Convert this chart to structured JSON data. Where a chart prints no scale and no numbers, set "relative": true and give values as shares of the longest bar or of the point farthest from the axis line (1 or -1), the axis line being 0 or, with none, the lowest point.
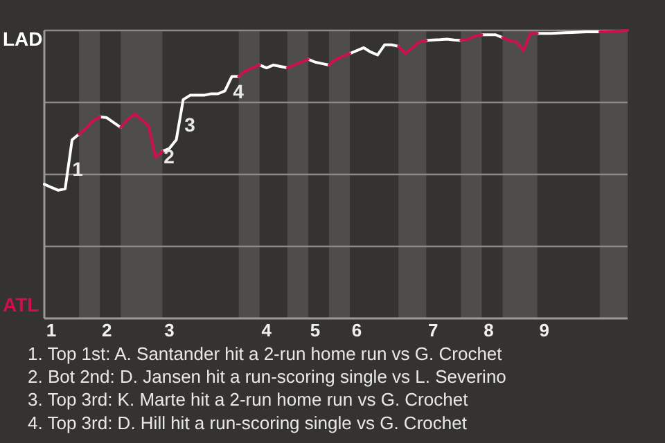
{
  "chart_data": {
    "type": "line",
    "relative": true,
    "grid": "y",
    "line_style": "solid",
    "marker": "none",
    "categories": [
      null,
      "1",
      null,
      null,
      null,
      null,
      null,
      null,
      null,
      "2",
      null,
      null,
      null,
      null,
      null,
      null,
      null,
      null,
      "3",
      null,
      null,
      null,
      null,
      null,
      null,
      null,
      null,
      null,
      null,
      null,
      null,
      null,
      "4",
      null,
      null,
      null,
      null,
      null,
      null,
      "5",
      null,
      null,
      null,
      null,
      null,
      "6",
      null,
      null,
      null,
      null,
      null,
      null,
      null,
      null,
      null,
      null,
      "7",
      null,
      null,
      null,
      null,
      null,
      null,
      null,
      "8",
      null,
      null,
      null,
      null,
      null,
      null,
      null,
      "9",
      null,
      null,
      null,
      null,
      null,
      null,
      null,
      null,
      null,
      null,
      null,
      null
    ],
    "series": [
      {
        "name": "LAD",
        "color": "#ffffff",
        "values": [
          0.466,
          0.455,
          0.445,
          0.45,
          0.62,
          0.64,
          null,
          null,
          0.7,
          0.697,
          0.68,
          0.663,
          null,
          null,
          null,
          null,
          null,
          0.58,
          0.59,
          0.62,
          0.76,
          0.775,
          0.775,
          0.775,
          0.78,
          0.78,
          0.79,
          0.84,
          0.84,
          null,
          null,
          0.88,
          0.87,
          0.88,
          0.875,
          0.87,
          null,
          null,
          0.9,
          0.89,
          0.885,
          0.88,
          null,
          null,
          0.92,
          0.93,
          0.94,
          0.925,
          0.915,
          0.95,
          0.95,
          0.945,
          null,
          null,
          null,
          0.965,
          0.967,
          0.968,
          0.97,
          0.967,
          0.965,
          null,
          null,
          0.985,
          0.985,
          0.985,
          0.975,
          null,
          null,
          null,
          null,
          0.99,
          0.99,
          0.99,
          0.991,
          0.992,
          0.993,
          0.994,
          0.995,
          0.995,
          0.995,
          null,
          null,
          null,
          null
        ]
      },
      {
        "name": "ATL",
        "color": "#d0104c",
        "values": [
          null,
          null,
          null,
          null,
          null,
          0.64,
          0.66,
          0.685,
          0.7,
          null,
          null,
          0.663,
          0.69,
          0.71,
          0.69,
          0.67,
          0.56,
          0.58,
          null,
          null,
          null,
          null,
          null,
          null,
          null,
          null,
          null,
          null,
          0.84,
          0.86,
          0.87,
          0.88,
          null,
          null,
          null,
          0.87,
          0.88,
          0.89,
          0.9,
          null,
          null,
          0.88,
          0.9,
          0.91,
          0.92,
          null,
          null,
          null,
          null,
          null,
          null,
          0.945,
          0.92,
          0.94,
          0.96,
          0.965,
          null,
          null,
          null,
          null,
          0.965,
          0.97,
          0.98,
          0.985,
          null,
          null,
          0.975,
          0.965,
          0.96,
          0.93,
          0.99,
          0.99,
          null,
          null,
          null,
          null,
          null,
          null,
          null,
          null,
          0.995,
          0.996,
          0.997,
          0.998,
          1
        ]
      }
    ],
    "annotations": [
      "1",
      "2",
      "3",
      "4",
      "1. Top 1st: A. Santander hit a 2-run home run vs G. Crochet",
      "2. Bot 2nd: D. Jansen hit a run-scoring single vs L. Severino",
      "3. Top 3rd: K. Marte hit a 2-run home run vs G. Crochet",
      "4. Top 3rd: D. Hill hit a run-scoring single vs G. Crochet"
    ]
  }
}
